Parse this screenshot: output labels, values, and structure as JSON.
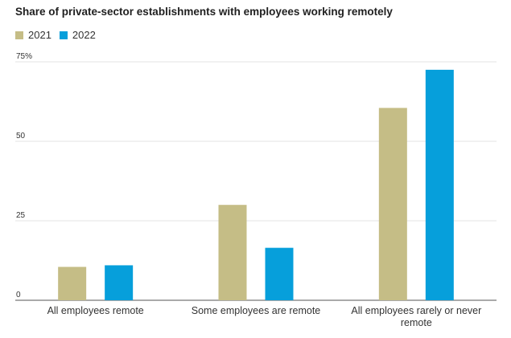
{
  "chart_data": {
    "type": "bar",
    "title": "Share of private-sector establishments with employees working remotely",
    "categories": [
      [
        "All employees remote"
      ],
      [
        "Some employees are remote"
      ],
      [
        "All employees rarely or never",
        "remote"
      ]
    ],
    "series": [
      {
        "name": "2021",
        "color": "#c5bd86",
        "values": [
          10.5,
          30,
          60.5
        ]
      },
      {
        "name": "2022",
        "color": "#069fdb",
        "values": [
          11,
          16.5,
          72.5
        ]
      }
    ],
    "ylim": [
      0,
      75
    ],
    "yticks": [
      0,
      25,
      50,
      75
    ],
    "ytick_labels": [
      "0",
      "25",
      "50",
      "75%"
    ],
    "grid": true,
    "legend_position": "top-left",
    "xlabel": "",
    "ylabel": ""
  }
}
